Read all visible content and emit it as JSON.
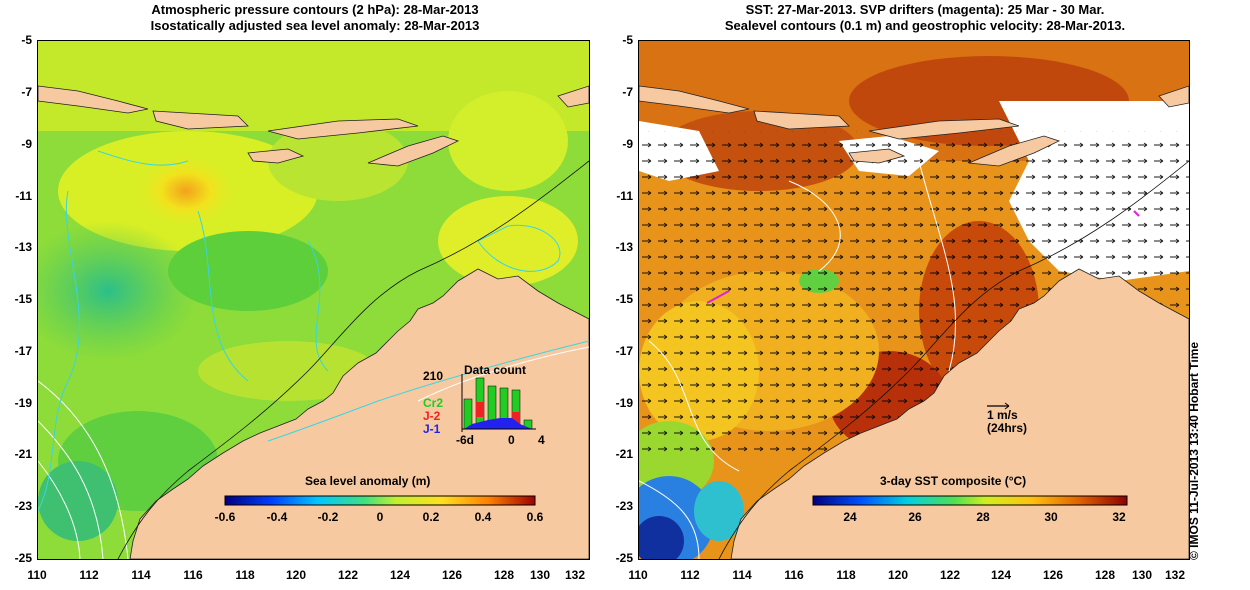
{
  "left_panel": {
    "title_line1": "Atmospheric pressure contours (2 hPa): 28-Mar-2013",
    "title_line2": "Isostatically adjusted sea level anomaly: 28-Mar-2013",
    "colorbar_title": "Sea level anomaly (m)",
    "colorbar_ticks": [
      "-0.6",
      "-0.4",
      "-0.2",
      "0",
      "0.2",
      "0.4",
      "0.6"
    ],
    "inset": {
      "title": "Data count",
      "max_count": "210",
      "series": [
        {
          "name": "Cr2",
          "color": "#22cc22"
        },
        {
          "name": "J-2",
          "color": "#ee2222"
        },
        {
          "name": "J-1",
          "color": "#2222ee"
        }
      ],
      "x_labels": [
        "-6d",
        "0",
        "4"
      ]
    }
  },
  "right_panel": {
    "title_line1": "SST: 27-Mar-2013. SVP drifters (magenta): 25 Mar - 30 Mar.",
    "title_line2": "Sealevel contours (0.1 m) and geostrophic velocity: 28-Mar-2013.",
    "colorbar_title": "3-day SST composite (°C)",
    "colorbar_ticks": [
      "24",
      "26",
      "28",
      "30",
      "32"
    ],
    "scale_arrow_label1": "1 m/s",
    "scale_arrow_label2": "(24hrs)"
  },
  "y_ticks": [
    "-5",
    "-7",
    "-9",
    "-11",
    "-13",
    "-15",
    "-17",
    "-19",
    "-21",
    "-23",
    "-25"
  ],
  "x_ticks": [
    "110",
    "112",
    "114",
    "116",
    "118",
    "120",
    "122",
    "124",
    "126",
    "128",
    "130",
    "132"
  ],
  "stamp": "© IMOS 11-Jul-2013 13:40 Hobart Time",
  "colors": {
    "land": "#f7c9a0",
    "sla_green": "#6fd63a",
    "sla_yellow": "#d7ef2a",
    "sst_orange": "#e58a12",
    "sst_red": "#b42a08",
    "no_data": "#ffffff"
  }
}
